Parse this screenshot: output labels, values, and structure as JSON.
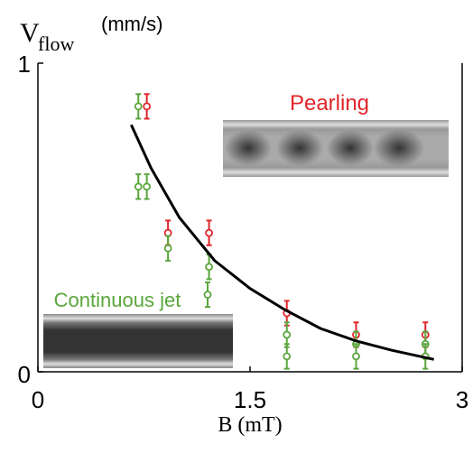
{
  "chart_data": {
    "type": "scatter",
    "ylabel": "V",
    "ylabel_subscript": "flow",
    "ylabel_unit": "(mm/s)",
    "xlabel": "B (mT)",
    "xlim": [
      0,
      3
    ],
    "ylim": [
      0,
      1
    ],
    "xticks": [
      0,
      1.5,
      3
    ],
    "yticks": [
      0,
      1
    ],
    "series": [
      {
        "name": "Pearling",
        "color": "#e0262b",
        "x": [
          0.77,
          0.92,
          1.21,
          1.76,
          2.25,
          2.74
        ],
        "values": [
          0.86,
          0.45,
          0.45,
          0.19,
          0.12,
          0.12
        ],
        "errors": [
          0.04,
          0.04,
          0.04,
          0.04,
          0.04,
          0.04
        ]
      },
      {
        "name": "Continuous jet",
        "color": "#5aa63c",
        "x": [
          0.71,
          0.71,
          0.77,
          0.92,
          1.21,
          1.2,
          1.76,
          1.76,
          2.25,
          2.25,
          2.74,
          2.74
        ],
        "values": [
          0.86,
          0.6,
          0.6,
          0.4,
          0.34,
          0.25,
          0.12,
          0.05,
          0.09,
          0.05,
          0.09,
          0.05
        ],
        "errors": [
          0.04,
          0.04,
          0.04,
          0.04,
          0.04,
          0.04,
          0.04,
          0.04,
          0.04,
          0.04,
          0.04,
          0.04
        ]
      }
    ],
    "fit": {
      "color": "#000000",
      "x": [
        0.66,
        0.8,
        1.0,
        1.25,
        1.5,
        1.75,
        2.0,
        2.25,
        2.5,
        2.8
      ],
      "values": [
        0.8,
        0.66,
        0.5,
        0.36,
        0.27,
        0.2,
        0.14,
        0.1,
        0.07,
        0.04
      ]
    }
  }
}
